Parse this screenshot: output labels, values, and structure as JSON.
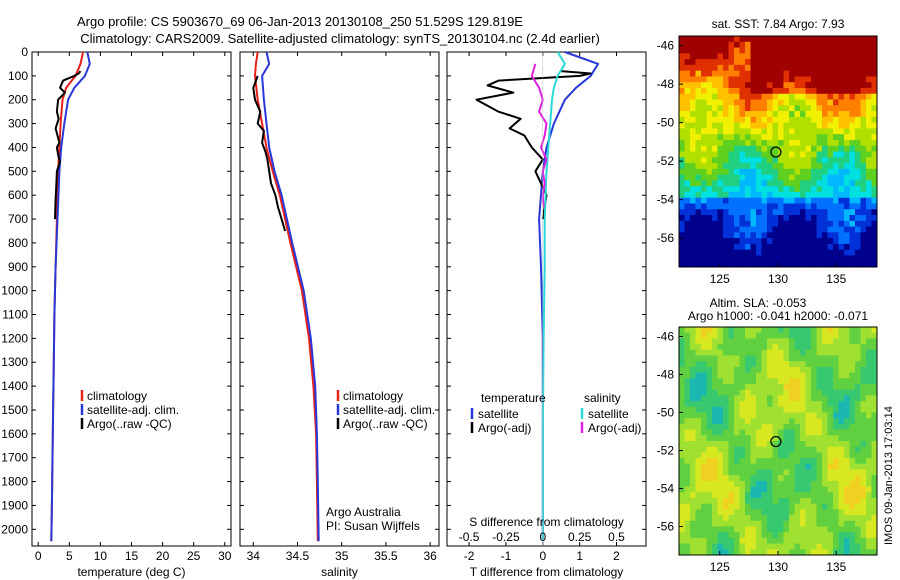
{
  "title": {
    "line1": "Argo profile: CS 5903670_69 06-Jan-2013 20130108_250 51.529S 129.819E",
    "line2": "Climatology: CARS2009. Satellite-adjusted climatology: synTS_20130104.nc (2.4d earlier)"
  },
  "colors": {
    "climatology": "#e8201a",
    "satellite": "#2838d8",
    "argo": "#000000",
    "t_satellite": "#2838d8",
    "s_satellite": "#2ad8d8",
    "s_argo": "#e020e0"
  },
  "chart_data": [
    {
      "id": "temperature",
      "type": "line",
      "xlabel": "temperature (deg C)",
      "ylabel": "",
      "xlim": [
        -1,
        31
      ],
      "ylim": [
        2070,
        0
      ],
      "xticks": [
        0,
        5,
        10,
        15,
        20,
        25,
        30
      ],
      "xtick_labels": [
        "0",
        "5",
        "10",
        "15",
        "20",
        "25",
        "30"
      ],
      "yticks": [
        0,
        100,
        200,
        300,
        400,
        500,
        600,
        700,
        800,
        900,
        1000,
        1100,
        1200,
        1300,
        1400,
        1500,
        1600,
        1700,
        1800,
        1900,
        2000
      ],
      "ytick_labels": [
        "0",
        "100",
        "200",
        "300",
        "400",
        "500",
        "600",
        "700",
        "800",
        "900",
        "1000",
        "1100",
        "1200",
        "1300",
        "1400",
        "1500",
        "1600",
        "1700",
        "1800",
        "1900",
        "2000"
      ],
      "legend": [
        "climatology",
        "satellite-adj. clim.",
        "Argo(..raw -QC)"
      ],
      "legend_position": "lower-center",
      "series": [
        {
          "name": "climatology",
          "color_key": "climatology",
          "x": [
            7.2,
            6.8,
            6.0,
            4.5,
            3.9,
            3.6,
            3.4,
            3.2,
            3.0,
            2.8,
            2.6,
            2.5,
            2.4,
            2.3,
            2.2,
            2.1
          ],
          "y": [
            0,
            50,
            100,
            150,
            200,
            300,
            400,
            500,
            700,
            900,
            1100,
            1300,
            1500,
            1700,
            1900,
            2050
          ]
        },
        {
          "name": "satellite-adj. clim.",
          "color_key": "satellite",
          "x": [
            7.9,
            8.3,
            7.5,
            5.8,
            4.8,
            4.2,
            3.7,
            3.4,
            3.1,
            2.8,
            2.6,
            2.5,
            2.4,
            2.3,
            2.2,
            2.1
          ],
          "y": [
            0,
            50,
            100,
            150,
            200,
            300,
            400,
            500,
            700,
            900,
            1100,
            1300,
            1500,
            1700,
            1900,
            2050
          ]
        },
        {
          "name": "Argo(..raw -QC)",
          "color_key": "argo",
          "x": [
            6.8,
            6.5,
            5.8,
            4.0,
            3.5,
            4.3,
            3.2,
            3.0,
            3.3,
            2.8,
            3.1,
            3.4,
            3.0,
            3.2,
            3.5,
            3.0,
            2.9,
            2.8,
            2.7
          ],
          "y": [
            80,
            90,
            100,
            120,
            150,
            170,
            200,
            250,
            280,
            320,
            350,
            380,
            400,
            430,
            460,
            500,
            560,
            620,
            700
          ]
        }
      ]
    },
    {
      "id": "salinity",
      "type": "line",
      "xlabel": "salinity",
      "ylabel": "",
      "xlim": [
        33.85,
        36.1
      ],
      "ylim": [
        2070,
        0
      ],
      "xticks": [
        34,
        34.5,
        35,
        35.5,
        36
      ],
      "xtick_labels": [
        "34",
        "34.5",
        "35",
        "35.5",
        "36"
      ],
      "legend": [
        "climatology",
        "satellite-adj. clim.",
        "Argo(..raw -QC)"
      ],
      "legend_position": "lower-right",
      "annotation": [
        "Argo Australia",
        "PI: Susan Wijffels"
      ],
      "series": [
        {
          "name": "climatology",
          "color_key": "climatology",
          "x": [
            34.05,
            34.03,
            34.02,
            34.05,
            34.1,
            34.15,
            34.22,
            34.3,
            34.42,
            34.55,
            34.63,
            34.68,
            34.71,
            34.72,
            34.73
          ],
          "y": [
            0,
            50,
            100,
            200,
            300,
            400,
            500,
            600,
            800,
            1000,
            1200,
            1400,
            1600,
            1800,
            2050
          ]
        },
        {
          "name": "satellite-adj. clim.",
          "color_key": "satellite",
          "x": [
            34.15,
            34.18,
            34.1,
            34.12,
            34.15,
            34.18,
            34.24,
            34.32,
            34.44,
            34.57,
            34.65,
            34.7,
            34.72,
            34.73,
            34.74
          ],
          "y": [
            0,
            50,
            100,
            200,
            300,
            400,
            500,
            600,
            800,
            1000,
            1200,
            1400,
            1600,
            1800,
            2050
          ]
        },
        {
          "name": "Argo(..raw -QC)",
          "color_key": "argo",
          "x": [
            34.05,
            34.0,
            34.02,
            34.08,
            34.05,
            34.12,
            34.1,
            34.14,
            34.16,
            34.18,
            34.2,
            34.25,
            34.28,
            34.32,
            34.36
          ],
          "y": [
            100,
            150,
            200,
            250,
            300,
            330,
            380,
            420,
            450,
            500,
            550,
            600,
            650,
            700,
            750
          ]
        }
      ]
    },
    {
      "id": "difference",
      "type": "line",
      "xlabel": "T difference from climatology",
      "top_label": "S difference from climatology",
      "ylabel": "",
      "xlim": [
        -2.6,
        2.8
      ],
      "ylim": [
        2070,
        0
      ],
      "xticks": [
        -2,
        -1,
        0,
        1,
        2
      ],
      "xtick_labels": [
        "-2",
        "-1",
        "0",
        "1",
        "2"
      ],
      "top_ticks": [
        -2,
        -1,
        0,
        1,
        2
      ],
      "top_tick_labels": [
        "-0.5",
        "-0.25",
        "0",
        "0.25",
        "0.5"
      ],
      "legend_groups": [
        {
          "title": "temperature",
          "items": [
            "satellite",
            "Argo(-adj)"
          ]
        },
        {
          "title": "salinity",
          "items": [
            "satellite",
            "Argo(-adj)"
          ]
        }
      ],
      "series": [
        {
          "name": "satellite",
          "group": "temperature",
          "color_key": "t_satellite",
          "x": [
            0.6,
            1.5,
            1.3,
            0.9,
            0.6,
            0.3,
            0.1,
            0.0,
            -0.1,
            -0.05,
            0.0,
            0.0,
            0.0
          ],
          "y": [
            0,
            50,
            100,
            150,
            200,
            300,
            400,
            500,
            700,
            900,
            1200,
            1600,
            2050
          ]
        },
        {
          "name": "Argo(-adj)",
          "group": "temperature",
          "color_key": "argo",
          "x": [
            0.5,
            1.3,
            1.0,
            -1.2,
            -1.5,
            -0.8,
            -1.8,
            -1.2,
            -0.6,
            -0.9,
            -0.5,
            -0.3,
            0.0,
            -0.2,
            0.1,
            0.0
          ],
          "y": [
            80,
            90,
            100,
            120,
            140,
            170,
            200,
            250,
            280,
            320,
            350,
            400,
            450,
            500,
            600,
            700
          ]
        },
        {
          "name": "satellite",
          "group": "salinity",
          "color_key": "s_satellite",
          "x": [
            0.4,
            0.6,
            0.4,
            0.3,
            0.25,
            0.2,
            0.15,
            0.1,
            0.05,
            0.05,
            0.02,
            0.0,
            0.0
          ],
          "y": [
            0,
            50,
            100,
            150,
            200,
            300,
            400,
            500,
            700,
            900,
            1200,
            1600,
            2050
          ]
        },
        {
          "name": "Argo(-adj)",
          "group": "salinity",
          "color_key": "s_argo",
          "x": [
            -0.2,
            -0.3,
            -0.1,
            0.0,
            -0.1,
            0.1,
            0.05,
            -0.05,
            0.1,
            0.0,
            0.05,
            0.0,
            0.02
          ],
          "y": [
            50,
            100,
            150,
            200,
            250,
            300,
            350,
            400,
            450,
            500,
            550,
            600,
            650
          ]
        }
      ]
    },
    {
      "id": "sst-map",
      "type": "heatmap",
      "title": "sat. SST: 7.84 Argo: 7.93",
      "xlim": [
        121.5,
        138.5
      ],
      "ylim": [
        -57.5,
        -45.5
      ],
      "xticks": [
        125,
        130,
        135
      ],
      "xtick_labels": [
        "125",
        "130",
        "135"
      ],
      "yticks": [
        -46,
        -48,
        -50,
        -52,
        -54,
        -56
      ],
      "ytick_labels": [
        "-46",
        "-48",
        "-50",
        "-52",
        "-54",
        "-56"
      ],
      "marker": {
        "lon": 129.819,
        "lat": -51.529
      }
    },
    {
      "id": "sla-map",
      "type": "heatmap",
      "title_lines": [
        "Altim. SLA: -0.053",
        "Argo h1000: -0.041 h2000: -0.071"
      ],
      "xlim": [
        121.5,
        138.5
      ],
      "ylim": [
        -57.5,
        -45.5
      ],
      "xticks": [
        125,
        130,
        135
      ],
      "xtick_labels": [
        "125",
        "130",
        "135"
      ],
      "yticks": [
        -46,
        -48,
        -50,
        -52,
        -54,
        -56
      ],
      "ytick_labels": [
        "-46",
        "-48",
        "-50",
        "-52",
        "-54",
        "-56"
      ],
      "marker": {
        "lon": 129.819,
        "lat": -51.529
      }
    }
  ],
  "stamp": "IMOS 09-Jan-2013 17:03:14"
}
